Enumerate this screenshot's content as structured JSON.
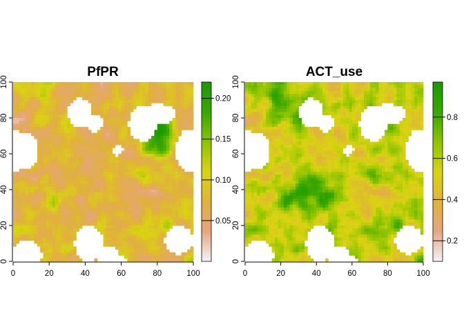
{
  "chart_data": [
    {
      "type": "heatmap",
      "title": "PfPR",
      "xlabel": "",
      "ylabel": "",
      "xlim": [
        0,
        100
      ],
      "ylim": [
        0,
        100
      ],
      "xticks": [
        "0",
        "20",
        "40",
        "60",
        "80",
        "100"
      ],
      "yticks": [
        "0",
        "20",
        "40",
        "60",
        "80",
        "100"
      ],
      "legend": {
        "placement": "right",
        "range": [
          0,
          0.22
        ],
        "ticks": [
          "0.05",
          "0.10",
          "0.15",
          "0.20"
        ],
        "colors": [
          "#f2f2f2",
          "#e6a57e",
          "#e0b23a",
          "#d9d411",
          "#8fc400",
          "#3aa800",
          "#1c9a00"
        ]
      },
      "no_data_patches": [
        {
          "x": 0,
          "y": 62,
          "rx": 7,
          "ry": 12
        },
        {
          "x": 7,
          "y": 62,
          "rx": 7,
          "ry": 10
        },
        {
          "x": 37,
          "y": 83,
          "rx": 7,
          "ry": 8
        },
        {
          "x": 45,
          "y": 77,
          "rx": 5,
          "ry": 5
        },
        {
          "x": 72,
          "y": 77,
          "rx": 8,
          "ry": 10
        },
        {
          "x": 80,
          "y": 82,
          "rx": 10,
          "ry": 6
        },
        {
          "x": 58,
          "y": 62,
          "rx": 3,
          "ry": 3
        },
        {
          "x": 98,
          "y": 62,
          "rx": 8,
          "ry": 12
        },
        {
          "x": 42,
          "y": 10,
          "rx": 8,
          "ry": 10
        },
        {
          "x": 52,
          "y": 4,
          "rx": 6,
          "ry": 5
        },
        {
          "x": 8,
          "y": 4,
          "rx": 8,
          "ry": 8
        },
        {
          "x": 92,
          "y": 12,
          "rx": 8,
          "ry": 8
        },
        {
          "x": 55,
          "y": 0,
          "rx": 8,
          "ry": 4
        }
      ]
    },
    {
      "type": "heatmap",
      "title": "ACT_use",
      "xlabel": "",
      "ylabel": "",
      "xlim": [
        0,
        100
      ],
      "ylim": [
        0,
        100
      ],
      "xticks": [
        "0",
        "20",
        "40",
        "60",
        "80",
        "100"
      ],
      "yticks": [
        "0",
        "20",
        "40",
        "60",
        "80",
        "100"
      ],
      "legend": {
        "placement": "right",
        "range": [
          0.1,
          0.97
        ],
        "ticks": [
          "0.2",
          "0.4",
          "0.6",
          "0.8"
        ],
        "colors": [
          "#f2f2f2",
          "#e6a57e",
          "#e0b23a",
          "#d9d411",
          "#8fc400",
          "#3aa800",
          "#1c9a00"
        ]
      },
      "no_data_patches": [
        {
          "x": 0,
          "y": 62,
          "rx": 7,
          "ry": 12
        },
        {
          "x": 7,
          "y": 62,
          "rx": 7,
          "ry": 10
        },
        {
          "x": 37,
          "y": 83,
          "rx": 7,
          "ry": 8
        },
        {
          "x": 45,
          "y": 77,
          "rx": 5,
          "ry": 5
        },
        {
          "x": 72,
          "y": 77,
          "rx": 8,
          "ry": 10
        },
        {
          "x": 80,
          "y": 82,
          "rx": 10,
          "ry": 6
        },
        {
          "x": 58,
          "y": 62,
          "rx": 3,
          "ry": 3
        },
        {
          "x": 98,
          "y": 62,
          "rx": 8,
          "ry": 12
        },
        {
          "x": 42,
          "y": 10,
          "rx": 8,
          "ry": 10
        },
        {
          "x": 52,
          "y": 4,
          "rx": 6,
          "ry": 5
        },
        {
          "x": 8,
          "y": 4,
          "rx": 8,
          "ry": 8
        },
        {
          "x": 92,
          "y": 12,
          "rx": 8,
          "ry": 8
        },
        {
          "x": 55,
          "y": 0,
          "rx": 8,
          "ry": 4
        }
      ]
    }
  ]
}
